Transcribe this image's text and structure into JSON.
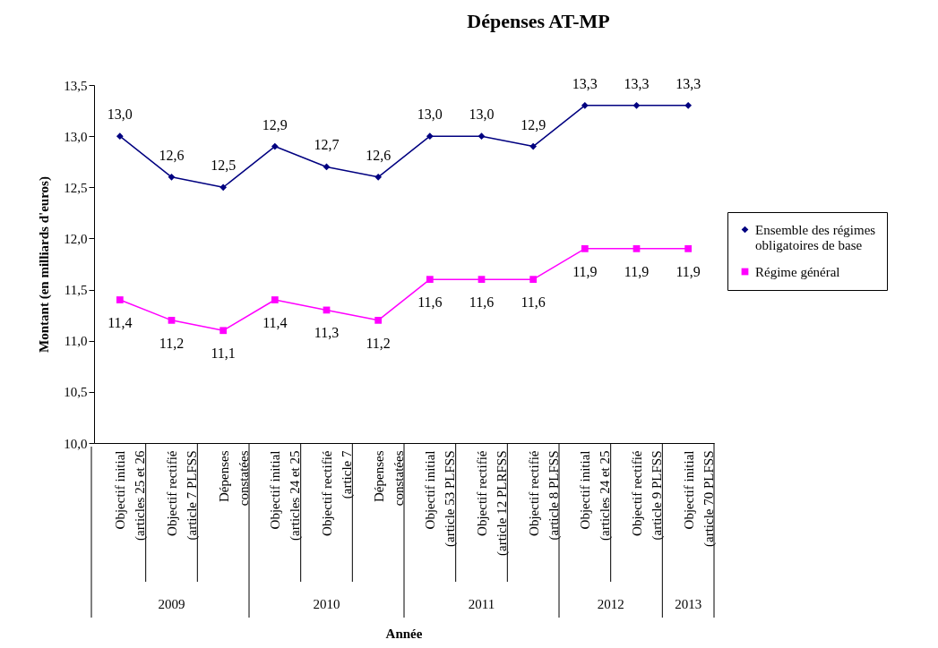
{
  "chart_data": {
    "type": "line",
    "title": "Dépenses AT-MP",
    "ylabel": "Montant (en milliards d'euros)",
    "categories": [
      "Objectif initial (articles 25 et 26",
      "Objectif rectifié (article 7 PLFSS",
      "Dépenses constatées",
      "Objectif initial (articles 24 et 25",
      "Objectif rectifié (article 7",
      "Dépenses constatées",
      "Objectif initial (article 53 PLFSS",
      "Objectif rectifié (article 12 PLRFSS",
      "Objectif rectifié (article 8 PLFSS",
      "Objectif initial (articles 24 et 25",
      "Objectif rectifié (article 9 PLFSS",
      "Objectif initial (article 70  PLFSS"
    ],
    "series": [
      {
        "name": "Ensemble des régimes obligatoires de base",
        "color": "#000080",
        "marker": "diamond",
        "values": [
          13.0,
          12.6,
          12.5,
          12.9,
          12.7,
          12.6,
          13.0,
          13.0,
          12.9,
          13.3,
          13.3,
          13.3
        ],
        "value_labels": [
          "13,0",
          "12,6",
          "12,5",
          "12,9",
          "12,7",
          "12,6",
          "13,0",
          "13,0",
          "12,9",
          "13,3",
          "13,3",
          "13,3"
        ]
      },
      {
        "name": "Régime général",
        "color": "#ff00ff",
        "marker": "square",
        "values": [
          11.4,
          11.2,
          11.1,
          11.4,
          11.3,
          11.2,
          11.6,
          11.6,
          11.6,
          11.9,
          11.9,
          11.9
        ],
        "value_labels": [
          "11,4",
          "11,2",
          "11,1",
          "11,4",
          "11,3",
          "11,2",
          "11,6",
          "11,6",
          "11,6",
          "11,9",
          "11,9",
          "11,9"
        ]
      }
    ],
    "ylim": [
      10,
      13.5
    ],
    "yticks": [
      {
        "value": 10,
        "label": "10,0"
      },
      {
        "value": 10.5,
        "label": "10,5"
      },
      {
        "value": 11,
        "label": "11,0"
      },
      {
        "value": 11.5,
        "label": "11,5"
      },
      {
        "value": 12,
        "label": "12,0"
      },
      {
        "value": 12.5,
        "label": "12,5"
      },
      {
        "value": 13,
        "label": "13,0"
      },
      {
        "value": 13.5,
        "label": "13,5"
      }
    ],
    "annotations": [
      "2009",
      "2010",
      "2011",
      "2012",
      "2013",
      "Année"
    ],
    "grid": false,
    "legend": "right"
  }
}
